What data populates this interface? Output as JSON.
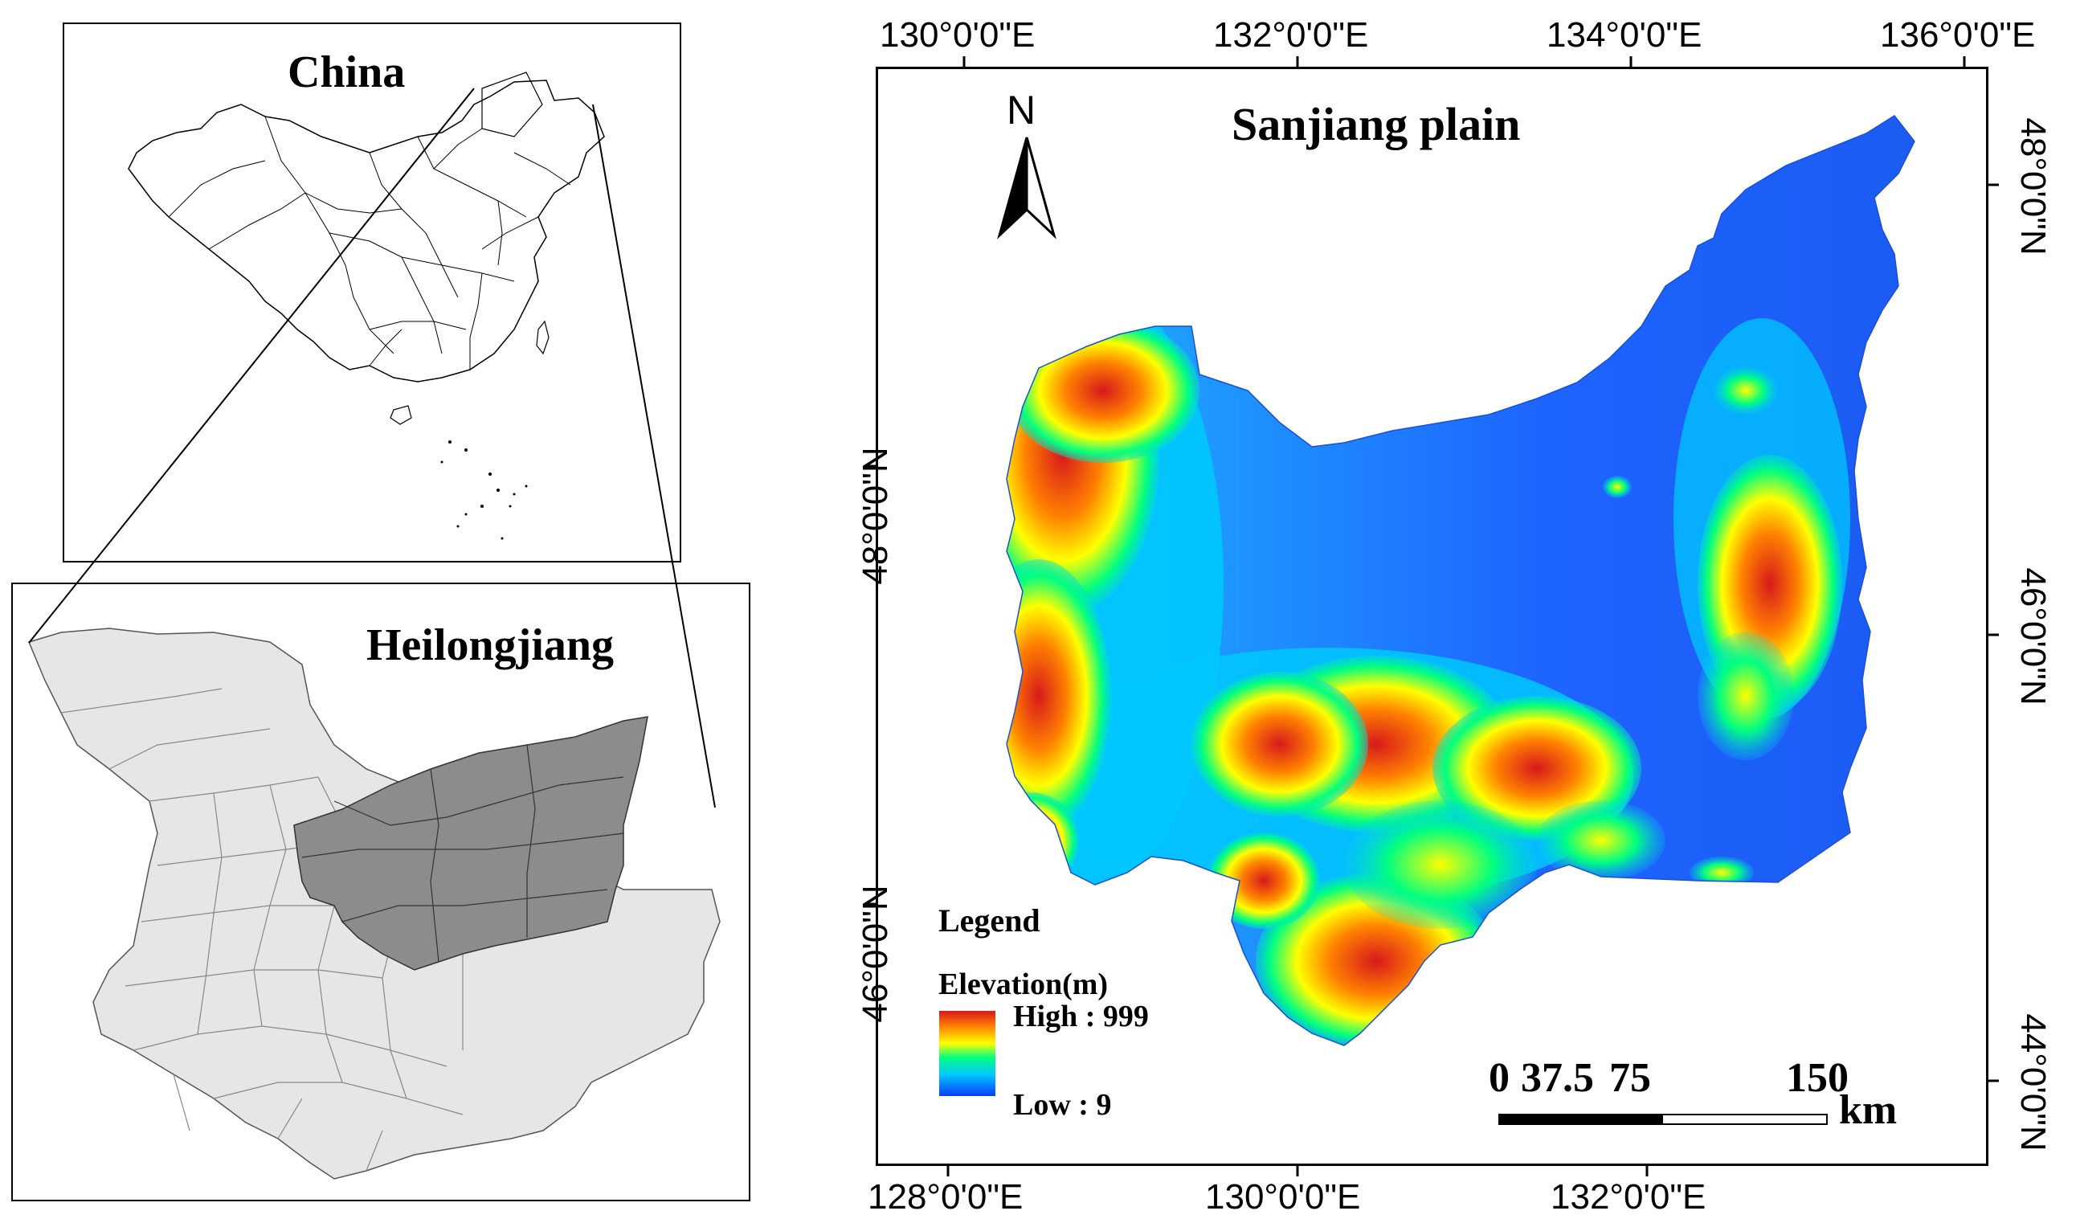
{
  "inset_china": {
    "title": "China"
  },
  "inset_heilongjiang": {
    "title": "Heilongjiang"
  },
  "main_map": {
    "title": "Sanjiang plain",
    "north_arrow": {
      "icon": "north-arrow-icon",
      "label": "N"
    },
    "top_ticks": [
      "130°0'0\"E",
      "132°0'0\"E",
      "134°0'0\"E",
      "136°0'0\"E"
    ],
    "bottom_ticks": [
      "128°0'0\"E",
      "130°0'0\"E",
      "132°0'0\"E"
    ],
    "left_ticks": [
      "48°0'0\"N",
      "46°0'0\"N"
    ],
    "right_ticks": [
      "48°0'0\"N",
      "46°0'0\"N",
      "44°0'0\"N"
    ]
  },
  "legend": {
    "title": "Legend",
    "subtitle": "Elevation(m)",
    "high_label": "High : 999",
    "low_label": "Low : 9",
    "gradient_colors": [
      "#d7191c",
      "#ffff00",
      "#00ff80",
      "#00c8ff",
      "#0a3cff"
    ]
  },
  "scale_bar": {
    "labels": [
      "0",
      "37.5",
      "75",
      "150"
    ],
    "unit": "km"
  },
  "colors": {
    "heilongjiang_fill": "#e6e6e6",
    "sanjiang_fill": "#8c8c8c",
    "lowland": "#1e64ff",
    "highland": "#d7191c"
  }
}
